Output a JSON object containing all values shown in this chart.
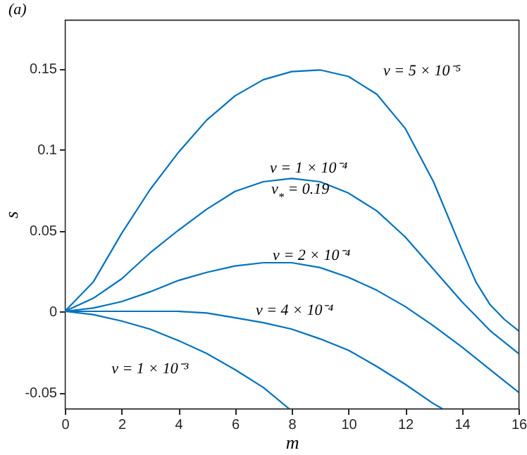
{
  "chart_data": {
    "type": "line",
    "title": "(a)",
    "xlabel": "m",
    "ylabel": "s",
    "x": [
      0,
      1,
      2,
      3,
      4,
      5,
      6,
      7,
      8,
      9,
      10,
      11,
      12,
      13,
      14,
      15,
      16
    ],
    "series": [
      {
        "name": "ν = 5 × 10⁻⁵",
        "color": "#0072bd",
        "x": [
          0,
          1,
          2,
          3,
          4,
          5,
          6,
          7,
          8,
          9,
          10,
          11,
          12,
          13,
          14,
          14.5,
          15,
          15.5,
          16
        ],
        "values": [
          0,
          0.018,
          0.048,
          0.075,
          0.098,
          0.118,
          0.133,
          0.143,
          0.148,
          0.149,
          0.145,
          0.134,
          0.113,
          0.08,
          0.038,
          0.018,
          0.004,
          -0.005,
          -0.012
        ]
      },
      {
        "name": "ν = 1 × 10⁻⁴",
        "color": "#0072bd",
        "values": [
          0,
          0.008,
          0.02,
          0.036,
          0.05,
          0.063,
          0.074,
          0.08,
          0.082,
          0.08,
          0.073,
          0.062,
          0.046,
          0.026,
          0.006,
          -0.012,
          -0.026
        ]
      },
      {
        "name": "ν = 2 × 10⁻⁴",
        "color": "#0072bd",
        "values": [
          0,
          0.002,
          0.006,
          0.012,
          0.019,
          0.024,
          0.028,
          0.03,
          0.03,
          0.027,
          0.021,
          0.013,
          0.003,
          -0.009,
          -0.022,
          -0.036,
          -0.05
        ]
      },
      {
        "name": "ν = 4 × 10⁻⁴",
        "color": "#0072bd",
        "x": [
          0,
          1,
          2,
          3,
          4,
          5,
          6,
          7,
          8,
          9,
          10,
          11,
          12,
          13,
          13.3
        ],
        "values": [
          0,
          0,
          0,
          0,
          0,
          -0.001,
          -0.004,
          -0.007,
          -0.011,
          -0.017,
          -0.024,
          -0.034,
          -0.045,
          -0.057,
          -0.06
        ]
      },
      {
        "name": "ν = 1 × 10⁻³",
        "color": "#0072bd",
        "x": [
          0,
          1,
          2,
          3,
          4,
          5,
          6,
          7,
          7.9
        ],
        "values": [
          0,
          -0.002,
          -0.006,
          -0.011,
          -0.018,
          -0.026,
          -0.036,
          -0.047,
          -0.06
        ]
      }
    ],
    "annotations": [
      "ν$_{*}$ = 0.19"
    ],
    "xlim": [
      0,
      16
    ],
    "xticks": [
      0,
      2,
      4,
      6,
      8,
      10,
      12,
      14,
      16
    ],
    "ylim": [
      -0.06,
      0.18
    ],
    "yticks": [
      -0.05,
      0,
      0.05,
      0.1,
      0.15
    ],
    "grid": false,
    "legend": false,
    "marker": "none",
    "line_style": "solid"
  }
}
